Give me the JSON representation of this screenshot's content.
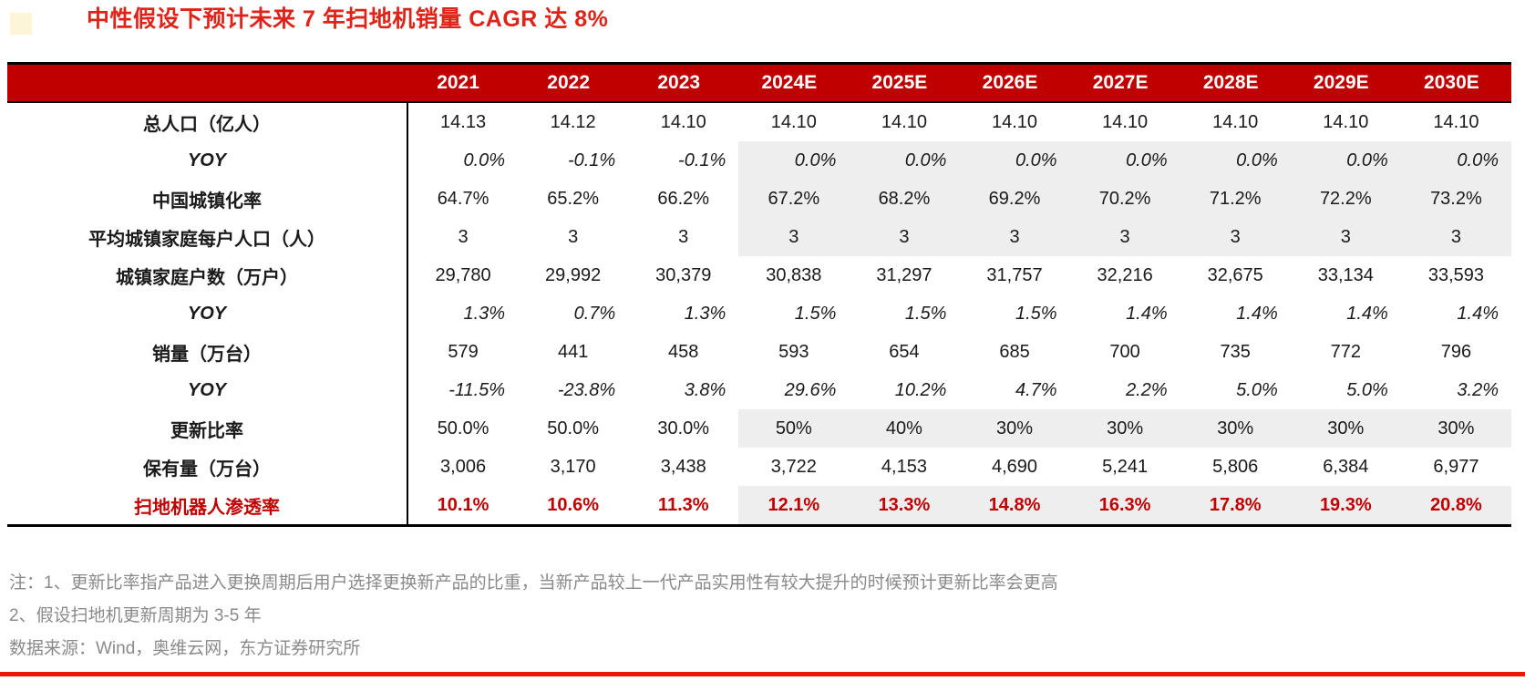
{
  "title": "中性假设下预计未来 7 年扫地机销量 CAGR 达 8%",
  "colors": {
    "title_red": "#e02318",
    "header_red": "#c00000",
    "highlight_row_red": "#c00000",
    "forecast_shade_gray": "#efeeee",
    "note_gray": "#8a8a8a",
    "bottom_rule_red": "#e8190c"
  },
  "chart_data": {
    "type": "table",
    "title": "中性假设下预计未来 7 年扫地机销量 CAGR 达 8%",
    "columns": [
      "2021",
      "2022",
      "2023",
      "2024E",
      "2025E",
      "2026E",
      "2027E",
      "2028E",
      "2029E",
      "2030E"
    ],
    "forecast_start_index": 3,
    "rows": [
      {
        "label": "总人口（亿人）",
        "type": "normal",
        "shaded_forecast": false,
        "values": [
          "14.13",
          "14.12",
          "14.10",
          "14.10",
          "14.10",
          "14.10",
          "14.10",
          "14.10",
          "14.10",
          "14.10"
        ]
      },
      {
        "label": "YOY",
        "type": "yoy",
        "shaded_forecast": true,
        "values": [
          "0.0%",
          "-0.1%",
          "-0.1%",
          "0.0%",
          "0.0%",
          "0.0%",
          "0.0%",
          "0.0%",
          "0.0%",
          "0.0%"
        ]
      },
      {
        "label": "中国城镇化率",
        "type": "normal",
        "shaded_forecast": true,
        "values": [
          "64.7%",
          "65.2%",
          "66.2%",
          "67.2%",
          "68.2%",
          "69.2%",
          "70.2%",
          "71.2%",
          "72.2%",
          "73.2%"
        ]
      },
      {
        "label": "平均城镇家庭每户人口（人）",
        "type": "normal",
        "shaded_forecast": true,
        "values": [
          "3",
          "3",
          "3",
          "3",
          "3",
          "3",
          "3",
          "3",
          "3",
          "3"
        ]
      },
      {
        "label": "城镇家庭户数（万户）",
        "type": "normal",
        "shaded_forecast": false,
        "values": [
          "29,780",
          "29,992",
          "30,379",
          "30,838",
          "31,297",
          "31,757",
          "32,216",
          "32,675",
          "33,134",
          "33,593"
        ]
      },
      {
        "label": "YOY",
        "type": "yoy",
        "shaded_forecast": false,
        "values": [
          "1.3%",
          "0.7%",
          "1.3%",
          "1.5%",
          "1.5%",
          "1.5%",
          "1.4%",
          "1.4%",
          "1.4%",
          "1.4%"
        ]
      },
      {
        "label": "销量（万台）",
        "type": "normal",
        "shaded_forecast": false,
        "values": [
          "579",
          "441",
          "458",
          "593",
          "654",
          "685",
          "700",
          "735",
          "772",
          "796"
        ]
      },
      {
        "label": "YOY",
        "type": "yoy",
        "shaded_forecast": false,
        "values": [
          "-11.5%",
          "-23.8%",
          "3.8%",
          "29.6%",
          "10.2%",
          "4.7%",
          "2.2%",
          "5.0%",
          "5.0%",
          "3.2%"
        ]
      },
      {
        "label": "更新比率",
        "type": "normal",
        "shaded_forecast": true,
        "values": [
          "50.0%",
          "50.0%",
          "30.0%",
          "50%",
          "40%",
          "30%",
          "30%",
          "30%",
          "30%",
          "30%"
        ]
      },
      {
        "label": "保有量（万台）",
        "type": "normal",
        "shaded_forecast": false,
        "values": [
          "3,006",
          "3,170",
          "3,438",
          "3,722",
          "4,153",
          "4,690",
          "5,241",
          "5,806",
          "6,384",
          "6,977"
        ]
      },
      {
        "label": "扫地机器人渗透率",
        "type": "red",
        "shaded_forecast": true,
        "values": [
          "10.1%",
          "10.6%",
          "11.3%",
          "12.1%",
          "13.3%",
          "14.8%",
          "16.3%",
          "17.8%",
          "19.3%",
          "20.8%"
        ]
      }
    ]
  },
  "notes": [
    "注：1、更新比率指产品进入更换周期后用户选择更换新产品的比重，当新产品较上一代产品实用性有较大提升的时候预计更新比率会更高",
    "2、假设扫地机更新周期为 3-5 年",
    "数据来源：Wind，奥维云网，东方证券研究所"
  ]
}
